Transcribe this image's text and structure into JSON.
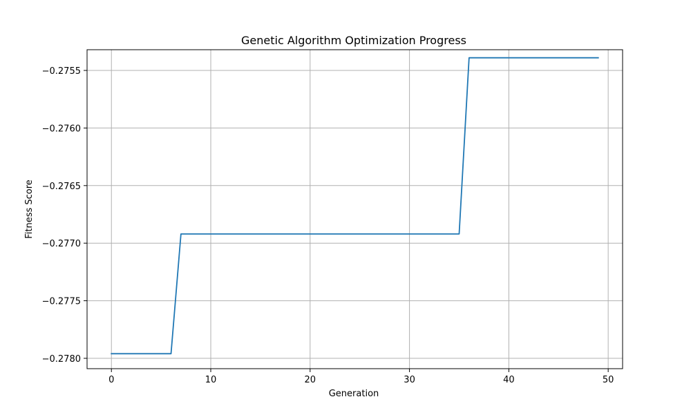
{
  "chart_data": {
    "type": "line",
    "title": "Genetic Algorithm Optimization Progress",
    "xlabel": "Generation",
    "ylabel": "Fitness Score",
    "xlim": [
      -2.45,
      51.45
    ],
    "ylim": [
      -0.27809,
      -0.27532
    ],
    "xticks": [
      0,
      10,
      20,
      30,
      40,
      50
    ],
    "xtick_labels": [
      "0",
      "10",
      "20",
      "30",
      "40",
      "50"
    ],
    "yticks": [
      -0.278,
      -0.2775,
      -0.277,
      -0.2765,
      -0.276,
      -0.2755
    ],
    "ytick_labels": [
      "−0.2780",
      "−0.2775",
      "−0.2770",
      "−0.2765",
      "−0.2760",
      "−0.2755"
    ],
    "grid": true,
    "colors": {
      "line": "#1f77b4",
      "grid": "#b0b0b0",
      "axes": "#000000"
    },
    "series": [
      {
        "x": [
          0,
          1,
          2,
          3,
          4,
          5,
          6,
          7,
          8,
          9,
          10,
          11,
          12,
          13,
          14,
          15,
          16,
          17,
          18,
          19,
          20,
          21,
          22,
          23,
          24,
          25,
          26,
          27,
          28,
          29,
          30,
          31,
          32,
          33,
          34,
          35,
          36,
          37,
          38,
          39,
          40,
          41,
          42,
          43,
          44,
          45,
          46,
          47,
          48,
          49
        ],
        "values": [
          -0.27796,
          -0.27796,
          -0.27796,
          -0.27796,
          -0.27796,
          -0.27796,
          -0.27796,
          -0.27692,
          -0.27692,
          -0.27692,
          -0.27692,
          -0.27692,
          -0.27692,
          -0.27692,
          -0.27692,
          -0.27692,
          -0.27692,
          -0.27692,
          -0.27692,
          -0.27692,
          -0.27692,
          -0.27692,
          -0.27692,
          -0.27692,
          -0.27692,
          -0.27692,
          -0.27692,
          -0.27692,
          -0.27692,
          -0.27692,
          -0.27692,
          -0.27692,
          -0.27692,
          -0.27692,
          -0.27692,
          -0.27692,
          -0.27539,
          -0.27539,
          -0.27539,
          -0.27539,
          -0.27539,
          -0.27539,
          -0.27539,
          -0.27539,
          -0.27539,
          -0.27539,
          -0.27539,
          -0.27539,
          -0.27539,
          -0.27539
        ]
      }
    ]
  }
}
